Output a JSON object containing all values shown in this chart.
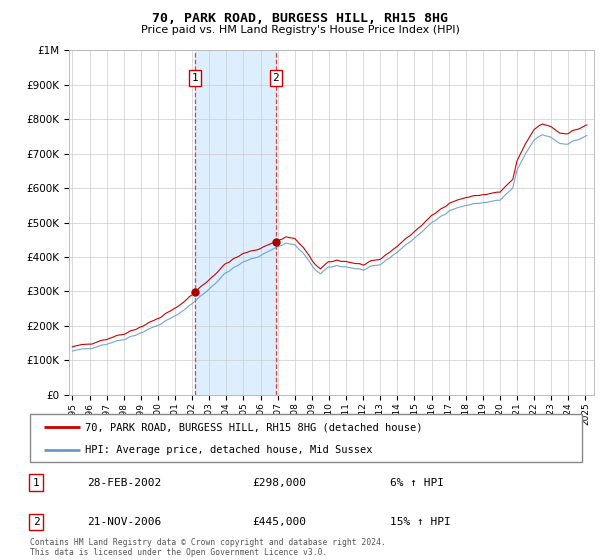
{
  "title": "70, PARK ROAD, BURGESS HILL, RH15 8HG",
  "subtitle": "Price paid vs. HM Land Registry's House Price Index (HPI)",
  "background_color": "#ffffff",
  "plot_bg_color": "#ffffff",
  "grid_color": "#cccccc",
  "ylabel_ticks": [
    "£0",
    "£100K",
    "£200K",
    "£300K",
    "£400K",
    "£500K",
    "£600K",
    "£700K",
    "£800K",
    "£900K",
    "£1M"
  ],
  "ytick_values": [
    0,
    100000,
    200000,
    300000,
    400000,
    500000,
    600000,
    700000,
    800000,
    900000,
    1000000
  ],
  "ylim": [
    0,
    1000000
  ],
  "xlim_start": 1994.8,
  "xlim_end": 2025.5,
  "sale1_x": 2002.15,
  "sale1_y": 298000,
  "sale2_x": 2006.9,
  "sale2_y": 445000,
  "sale1_label": "1",
  "sale2_label": "2",
  "price_line_color": "#cc0000",
  "hpi_line_color": "#6699cc",
  "sale_marker_color": "#aa0000",
  "vline_color": "#dd4444",
  "shade_color": "#ddeeff",
  "transaction1": {
    "num": "1",
    "date": "28-FEB-2002",
    "price": "£298,000",
    "hpi": "6% ↑ HPI"
  },
  "transaction2": {
    "num": "2",
    "date": "21-NOV-2006",
    "price": "£445,000",
    "hpi": "15% ↑ HPI"
  },
  "footer": "Contains HM Land Registry data © Crown copyright and database right 2024.\nThis data is licensed under the Open Government Licence v3.0.",
  "legend_line1": "70, PARK ROAD, BURGESS HILL, RH15 8HG (detached house)",
  "legend_line2": "HPI: Average price, detached house, Mid Sussex"
}
